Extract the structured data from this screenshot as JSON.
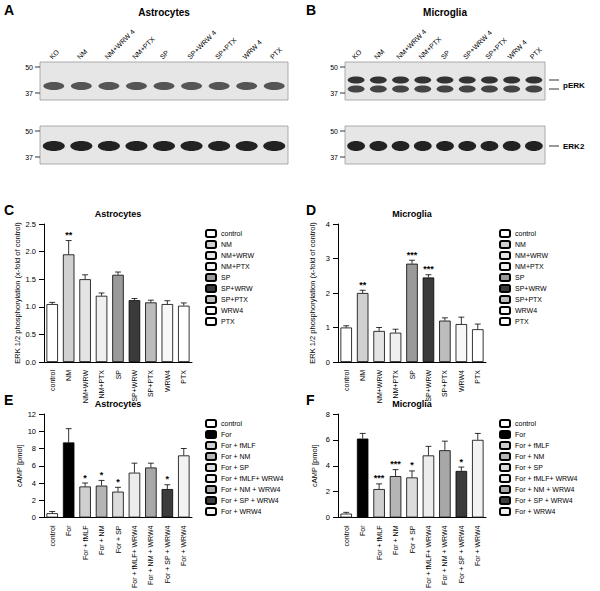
{
  "blots": [
    {
      "panel": "A",
      "title": "Astrocytes",
      "lanes": [
        "KO",
        "NM",
        "NM+WRW 4",
        "NM+PTX",
        "SP",
        "SP+WRW 4",
        "SP+PTX",
        "WRW 4",
        "PTX"
      ],
      "markers": [
        50,
        37
      ]
    },
    {
      "panel": "B",
      "title": "Microglia",
      "lanes": [
        "KO",
        "NM",
        "NM+WRW 4",
        "NM+PTX",
        "SP",
        "SP+WRW 4",
        "SP+PTX",
        "WRW 4",
        "PTX"
      ],
      "markers": [
        50,
        37
      ],
      "band_labels": [
        "pERK",
        "ERK2"
      ]
    }
  ],
  "chart_data": [
    {
      "panel": "C",
      "type": "bar",
      "title": "Astrocytes",
      "y_label": "ERK 1/2 phosphorylation (x-fold of control)",
      "categories": [
        "control",
        "NM",
        "NM+WRW",
        "NM+PTX",
        "SP",
        "SP+WRW",
        "SP+PTX",
        "WRW4",
        "PTX"
      ],
      "values": [
        1.05,
        1.95,
        1.5,
        1.2,
        1.58,
        1.12,
        1.08,
        1.05,
        1.02
      ],
      "errors": [
        0.03,
        0.25,
        0.08,
        0.05,
        0.05,
        0.03,
        0.04,
        0.06,
        0.05
      ],
      "colors": [
        "#ffffff",
        "#d0d0d0",
        "#e4e4e4",
        "#f0f0f0",
        "#9a9a9a",
        "#3a3a3a",
        "#bdbdbd",
        "#f7f7f7",
        "#ffffff"
      ],
      "annotations": [
        {
          "category": "NM",
          "text": "**"
        }
      ],
      "ylim": [
        0,
        2.5
      ],
      "yticks": [
        {
          "value": 0,
          "label": "0.0"
        },
        {
          "value": 0.5,
          "label": "0.5"
        },
        {
          "value": 1,
          "label": "1.0"
        },
        {
          "value": 1.5,
          "label": "1.5"
        },
        {
          "value": 2,
          "label": "2.0"
        },
        {
          "value": 2.5,
          "label": "2.5"
        }
      ],
      "grid": false,
      "legend": "right"
    },
    {
      "panel": "D",
      "type": "bar",
      "title": "Microglia",
      "y_label": "ERK 1/2 phosphorylation (x-fold of control)",
      "categories": [
        "control",
        "NM",
        "NM+WRW",
        "NM+PTX",
        "SP",
        "SP+WRW",
        "SP+PTX",
        "WRW4",
        "PTX"
      ],
      "values": [
        1.0,
        2.0,
        0.9,
        0.85,
        2.85,
        2.45,
        1.2,
        1.1,
        0.95
      ],
      "errors": [
        0.05,
        0.08,
        0.1,
        0.1,
        0.1,
        0.08,
        0.08,
        0.2,
        0.15
      ],
      "colors": [
        "#ffffff",
        "#d0d0d0",
        "#e4e4e4",
        "#f0f0f0",
        "#9a9a9a",
        "#3a3a3a",
        "#bdbdbd",
        "#f7f7f7",
        "#ffffff"
      ],
      "annotations": [
        {
          "category": "NM",
          "text": "**"
        },
        {
          "category": "SP",
          "text": "***"
        },
        {
          "category": "SP+WRW",
          "text": "***"
        }
      ],
      "ylim": [
        0,
        4
      ],
      "yticks": [
        0,
        1,
        2,
        3,
        4
      ],
      "grid": false,
      "legend": "right"
    },
    {
      "panel": "E",
      "type": "bar",
      "title": "Astrocytes",
      "y_label": "cAMP [pmol]",
      "categories": [
        "control",
        "For",
        "For + fMLF",
        "For + NM",
        "For + SP",
        "For + fMLF+ WRW4",
        "For + NM + WRW4",
        "For + SP + WRW4",
        "For + WRW4"
      ],
      "values": [
        0.5,
        8.7,
        3.6,
        3.7,
        3.0,
        5.2,
        5.8,
        3.3,
        7.2
      ],
      "errors": [
        0.2,
        1.6,
        0.4,
        0.6,
        0.5,
        1.1,
        0.5,
        0.5,
        0.8
      ],
      "colors": [
        "#ffffff",
        "#000000",
        "#cfcfcf",
        "#b5b5b5",
        "#dcdcdc",
        "#ececec",
        "#a8a8a8",
        "#3c3c3c",
        "#f3f3f3"
      ],
      "annotations": [
        {
          "category": "For + fMLF",
          "text": "*"
        },
        {
          "category": "For + NM",
          "text": "*"
        },
        {
          "category": "For + SP",
          "text": "*"
        },
        {
          "category": "For + SP + WRW4",
          "text": "*"
        }
      ],
      "ylim": [
        0,
        12
      ],
      "yticks": [
        0,
        2,
        4,
        6,
        8,
        10,
        12
      ],
      "grid": false,
      "legend": "right"
    },
    {
      "panel": "F",
      "type": "bar",
      "title": "Microglia",
      "y_label": "cAMP [pmol]",
      "categories": [
        "control",
        "For",
        "For + fMLF",
        "For + NM",
        "For + SP",
        "For + fMLF+ WRW4",
        "For + NM + WRW4",
        "For + SP + WRW4",
        "For + WRW4"
      ],
      "values": [
        0.3,
        6.1,
        2.2,
        3.2,
        3.1,
        4.8,
        5.2,
        3.6,
        6.0
      ],
      "errors": [
        0.1,
        0.4,
        0.4,
        0.5,
        0.5,
        0.7,
        0.7,
        0.3,
        0.5
      ],
      "colors": [
        "#ffffff",
        "#000000",
        "#cfcfcf",
        "#b5b5b5",
        "#dcdcdc",
        "#ececec",
        "#a8a8a8",
        "#3c3c3c",
        "#f3f3f3"
      ],
      "annotations": [
        {
          "category": "For + fMLF",
          "text": "***"
        },
        {
          "category": "For + NM",
          "text": "***"
        },
        {
          "category": "For + SP",
          "text": "*"
        },
        {
          "category": "For + SP + WRW4",
          "text": "*"
        }
      ],
      "ylim": [
        0,
        8
      ],
      "yticks": [
        0,
        2,
        4,
        6,
        8
      ],
      "grid": false,
      "legend": "right"
    }
  ]
}
